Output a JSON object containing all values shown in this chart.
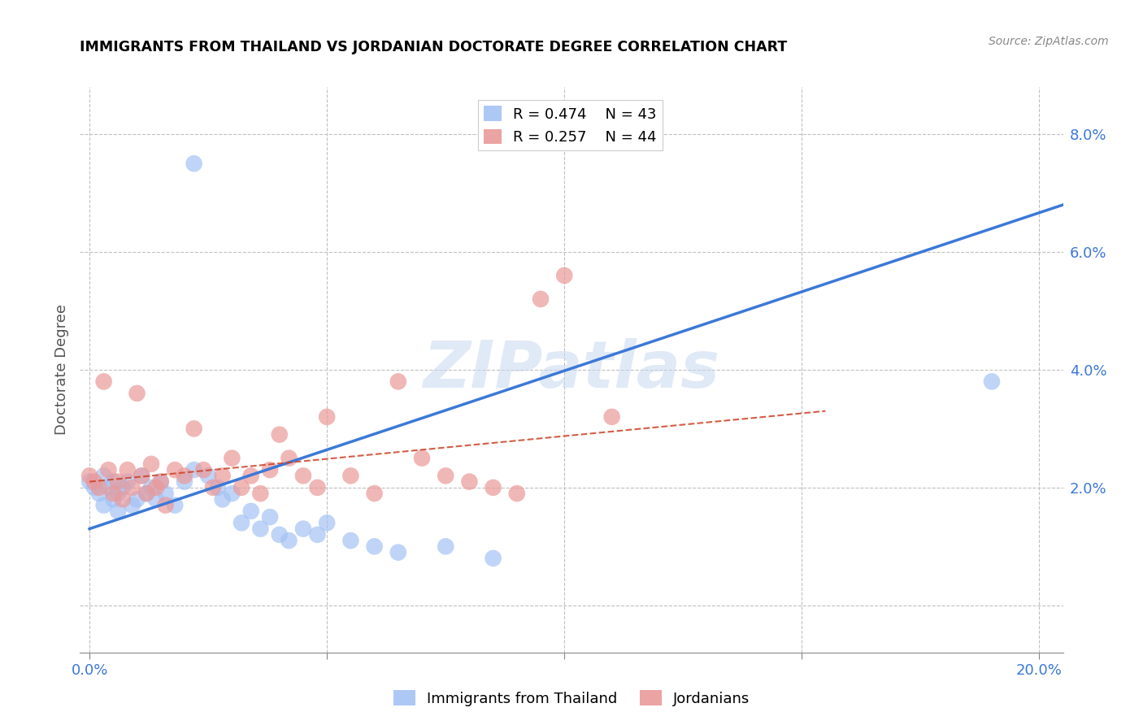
{
  "title": "IMMIGRANTS FROM THAILAND VS JORDANIAN DOCTORATE DEGREE CORRELATION CHART",
  "source": "Source: ZipAtlas.com",
  "ylabel": "Doctorate Degree",
  "watermark": "ZIPatlas",
  "x_ticks": [
    0.0,
    0.05,
    0.1,
    0.15,
    0.2
  ],
  "x_tick_labels": [
    "0.0%",
    "",
    "",
    "",
    "20.0%"
  ],
  "y_ticks": [
    0.0,
    0.02,
    0.04,
    0.06,
    0.08
  ],
  "y_tick_labels_right": [
    "",
    "2.0%",
    "4.0%",
    "6.0%",
    "8.0%"
  ],
  "xlim": [
    -0.002,
    0.205
  ],
  "ylim": [
    -0.008,
    0.088
  ],
  "legend": [
    {
      "label": "Immigrants from Thailand",
      "color": "#a4c2f4",
      "R": 0.474,
      "N": 43
    },
    {
      "label": "Jordanians",
      "color": "#ea9999",
      "R": 0.257,
      "N": 44
    }
  ],
  "blue_scatter_x": [
    0.0,
    0.001,
    0.002,
    0.003,
    0.003,
    0.004,
    0.005,
    0.005,
    0.006,
    0.006,
    0.007,
    0.008,
    0.009,
    0.01,
    0.011,
    0.012,
    0.013,
    0.014,
    0.015,
    0.016,
    0.018,
    0.02,
    0.022,
    0.025,
    0.027,
    0.028,
    0.03,
    0.032,
    0.034,
    0.036,
    0.038,
    0.04,
    0.042,
    0.045,
    0.048,
    0.05,
    0.055,
    0.06,
    0.065,
    0.075,
    0.085,
    0.19,
    0.022
  ],
  "blue_scatter_y": [
    0.021,
    0.02,
    0.019,
    0.022,
    0.017,
    0.02,
    0.021,
    0.018,
    0.019,
    0.016,
    0.02,
    0.021,
    0.017,
    0.018,
    0.022,
    0.019,
    0.02,
    0.018,
    0.021,
    0.019,
    0.017,
    0.021,
    0.023,
    0.022,
    0.02,
    0.018,
    0.019,
    0.014,
    0.016,
    0.013,
    0.015,
    0.012,
    0.011,
    0.013,
    0.012,
    0.014,
    0.011,
    0.01,
    0.009,
    0.01,
    0.008,
    0.038,
    0.075
  ],
  "pink_scatter_x": [
    0.0,
    0.001,
    0.002,
    0.003,
    0.004,
    0.005,
    0.006,
    0.007,
    0.008,
    0.009,
    0.01,
    0.011,
    0.012,
    0.013,
    0.014,
    0.015,
    0.016,
    0.018,
    0.02,
    0.022,
    0.024,
    0.026,
    0.028,
    0.03,
    0.032,
    0.034,
    0.036,
    0.038,
    0.04,
    0.042,
    0.045,
    0.048,
    0.05,
    0.055,
    0.06,
    0.065,
    0.07,
    0.075,
    0.08,
    0.085,
    0.09,
    0.095,
    0.1,
    0.11
  ],
  "pink_scatter_y": [
    0.022,
    0.021,
    0.02,
    0.038,
    0.023,
    0.019,
    0.021,
    0.018,
    0.023,
    0.02,
    0.036,
    0.022,
    0.019,
    0.024,
    0.02,
    0.021,
    0.017,
    0.023,
    0.022,
    0.03,
    0.023,
    0.02,
    0.022,
    0.025,
    0.02,
    0.022,
    0.019,
    0.023,
    0.029,
    0.025,
    0.022,
    0.02,
    0.032,
    0.022,
    0.019,
    0.038,
    0.025,
    0.022,
    0.021,
    0.02,
    0.019,
    0.052,
    0.056,
    0.032
  ],
  "blue_line_x": [
    0.0,
    0.205
  ],
  "blue_line_y": [
    0.013,
    0.068
  ],
  "pink_line_x": [
    0.0,
    0.155
  ],
  "pink_line_y": [
    0.021,
    0.033
  ],
  "blue_scatter_color": "#a4c2f4",
  "pink_scatter_color": "#ea9999",
  "blue_line_color": "#3c78d8",
  "pink_line_color": "#cc4125",
  "background_color": "#ffffff",
  "grid_color": "#c0c0c0",
  "title_color": "#000000",
  "right_tick_color": "#3c78d8",
  "bottom_tick_color": "#3c78d8"
}
